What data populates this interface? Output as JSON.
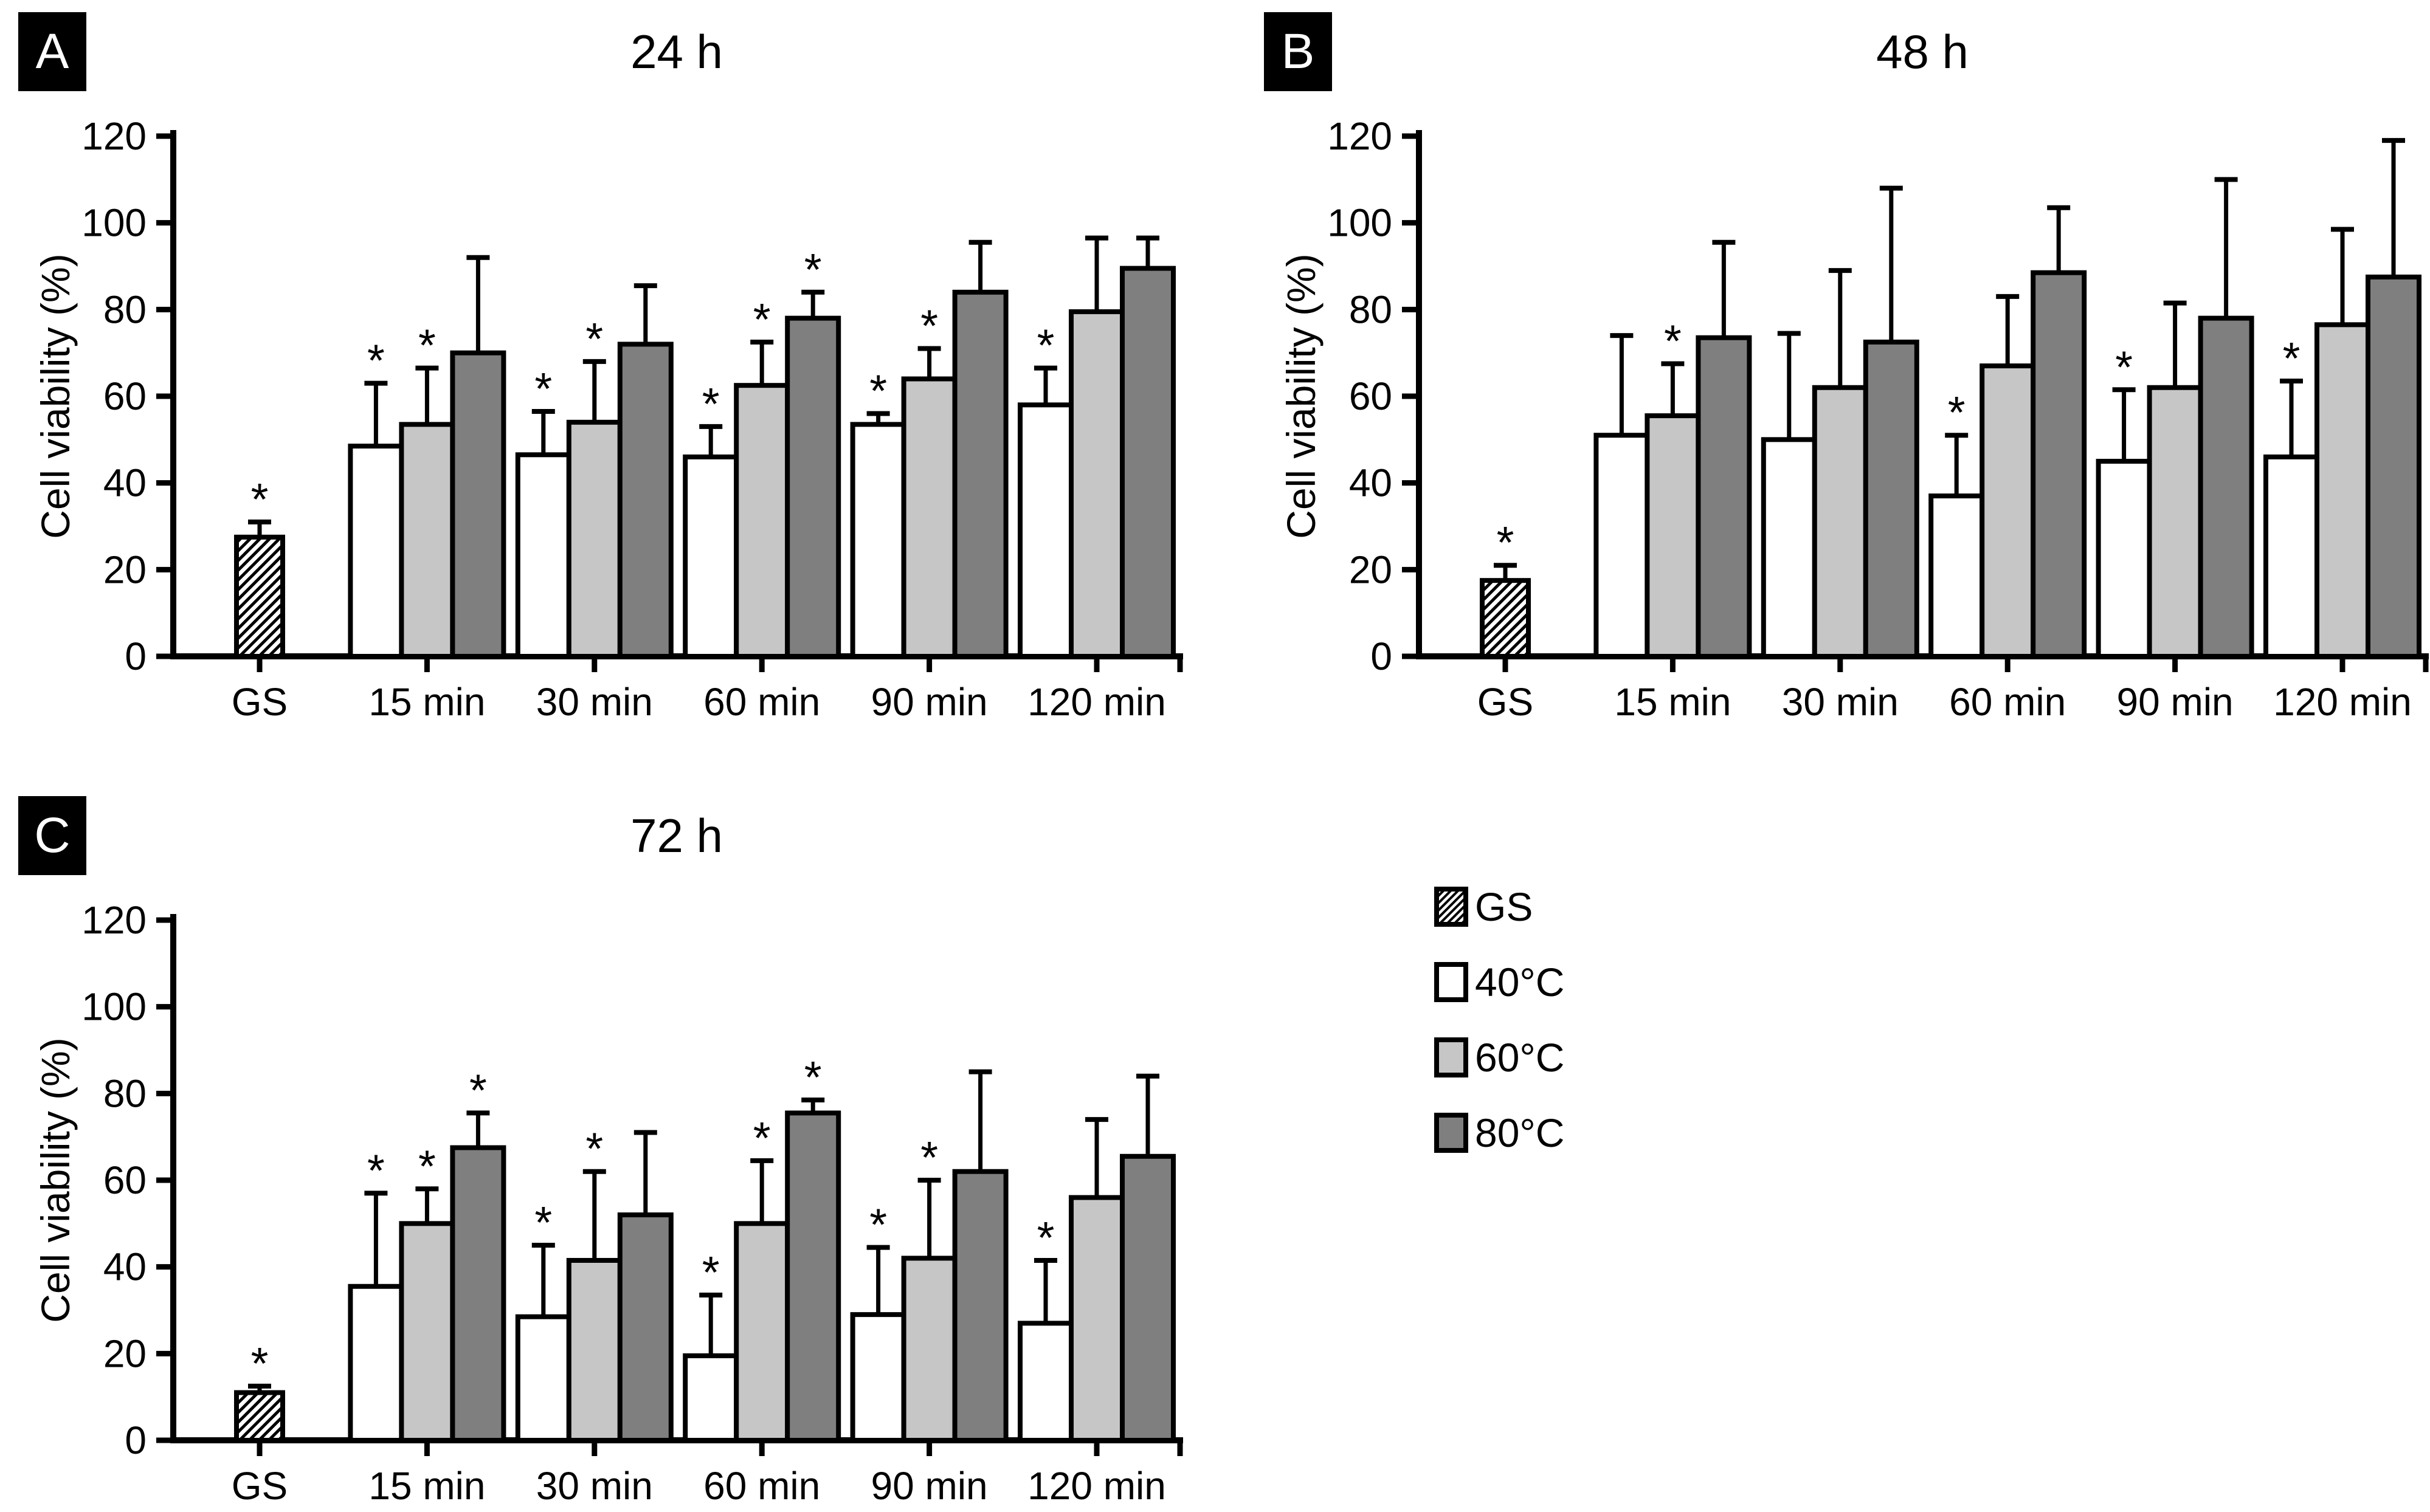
{
  "figure": {
    "background": "#ffffff",
    "ink": "#000000"
  },
  "palette": {
    "white": "#ffffff",
    "lightgray": "#c6c6c6",
    "darkgray": "#7f7f7f",
    "hatch": "black diagonal lines on white"
  },
  "sig_marker": "*",
  "legend": {
    "items": [
      {
        "label": "GS",
        "style": "hatch"
      },
      {
        "label": "40°C",
        "style": "white"
      },
      {
        "label": "60°C",
        "style": "lightgray"
      },
      {
        "label": "80°C",
        "style": "darkgray"
      }
    ]
  },
  "chart_data": [
    {
      "type": "bar",
      "panel_letter": "A",
      "title": "24 h",
      "ylabel": "Cell viability (%)",
      "ylim": [
        0,
        120
      ],
      "yticks": [
        0,
        20,
        40,
        60,
        80,
        100,
        120
      ],
      "grid": false,
      "categories": [
        "GS",
        "15 min",
        "30 min",
        "60 min",
        "90 min",
        "120 min"
      ],
      "series": [
        {
          "name": "GS",
          "style": "hatch",
          "values": [
            27.5,
            null,
            null,
            null,
            null,
            null
          ],
          "errors": [
            3.5,
            null,
            null,
            null,
            null,
            null
          ],
          "sig": [
            true,
            null,
            null,
            null,
            null,
            null
          ]
        },
        {
          "name": "40°C",
          "style": "white",
          "values": [
            null,
            48.5,
            46.5,
            46,
            53.5,
            58
          ],
          "errors": [
            null,
            14.5,
            10,
            7,
            2.5,
            8.5
          ],
          "sig": [
            null,
            true,
            true,
            true,
            true,
            true
          ]
        },
        {
          "name": "60°C",
          "style": "lightgray",
          "values": [
            null,
            53.5,
            54,
            62.5,
            64,
            79.5
          ],
          "errors": [
            null,
            13,
            14,
            10,
            7,
            17
          ],
          "sig": [
            null,
            true,
            true,
            true,
            true,
            false
          ]
        },
        {
          "name": "80°C",
          "style": "darkgray",
          "values": [
            null,
            70,
            72,
            78,
            84,
            89.5
          ],
          "errors": [
            null,
            22,
            13.5,
            6,
            11.5,
            7
          ],
          "sig": [
            null,
            false,
            false,
            true,
            false,
            false
          ]
        }
      ]
    },
    {
      "type": "bar",
      "panel_letter": "B",
      "title": "48 h",
      "ylabel": "Cell viability (%)",
      "ylim": [
        0,
        120
      ],
      "yticks": [
        0,
        20,
        40,
        60,
        80,
        100,
        120
      ],
      "grid": false,
      "categories": [
        "GS",
        "15 min",
        "30 min",
        "60 min",
        "90 min",
        "120 min"
      ],
      "series": [
        {
          "name": "GS",
          "style": "hatch",
          "values": [
            17.5,
            null,
            null,
            null,
            null,
            null
          ],
          "errors": [
            3.5,
            null,
            null,
            null,
            null,
            null
          ],
          "sig": [
            true,
            null,
            null,
            null,
            null,
            null
          ]
        },
        {
          "name": "40°C",
          "style": "white",
          "values": [
            null,
            51,
            50,
            37,
            45,
            46
          ],
          "errors": [
            null,
            23,
            24.5,
            14,
            16.5,
            17.5
          ],
          "sig": [
            null,
            false,
            false,
            true,
            true,
            true
          ]
        },
        {
          "name": "60°C",
          "style": "lightgray",
          "values": [
            null,
            55.5,
            62,
            67,
            62,
            76.5
          ],
          "errors": [
            null,
            12,
            27,
            16,
            19.5,
            22
          ],
          "sig": [
            null,
            true,
            false,
            false,
            false,
            false
          ]
        },
        {
          "name": "80°C",
          "style": "darkgray",
          "values": [
            null,
            73.5,
            72.5,
            88.5,
            78,
            87.5
          ],
          "errors": [
            null,
            22,
            35.5,
            15,
            32,
            31.5
          ],
          "sig": [
            null,
            false,
            false,
            false,
            false,
            false
          ]
        }
      ]
    },
    {
      "type": "bar",
      "panel_letter": "C",
      "title": "72 h",
      "ylabel": "Cell viability (%)",
      "ylim": [
        0,
        120
      ],
      "yticks": [
        0,
        20,
        40,
        60,
        80,
        100,
        120
      ],
      "grid": false,
      "categories": [
        "GS",
        "15 min",
        "30 min",
        "60 min",
        "90 min",
        "120 min"
      ],
      "series": [
        {
          "name": "GS",
          "style": "hatch",
          "values": [
            11,
            null,
            null,
            null,
            null,
            null
          ],
          "errors": [
            1.5,
            null,
            null,
            null,
            null,
            null
          ],
          "sig": [
            true,
            null,
            null,
            null,
            null,
            null
          ]
        },
        {
          "name": "40°C",
          "style": "white",
          "values": [
            null,
            35.5,
            28.5,
            19.5,
            29,
            27
          ],
          "errors": [
            null,
            21.5,
            16.5,
            14,
            15.5,
            14.5
          ],
          "sig": [
            null,
            true,
            true,
            true,
            true,
            true
          ]
        },
        {
          "name": "60°C",
          "style": "lightgray",
          "values": [
            null,
            50,
            41.5,
            50,
            42,
            56
          ],
          "errors": [
            null,
            8,
            20.5,
            14.5,
            18,
            18
          ],
          "sig": [
            null,
            true,
            true,
            true,
            true,
            false
          ]
        },
        {
          "name": "80°C",
          "style": "darkgray",
          "values": [
            null,
            67.5,
            52,
            75.5,
            62,
            65.5
          ],
          "errors": [
            null,
            8,
            19,
            3,
            23,
            18.5
          ],
          "sig": [
            null,
            true,
            false,
            true,
            false,
            false
          ]
        }
      ]
    }
  ]
}
